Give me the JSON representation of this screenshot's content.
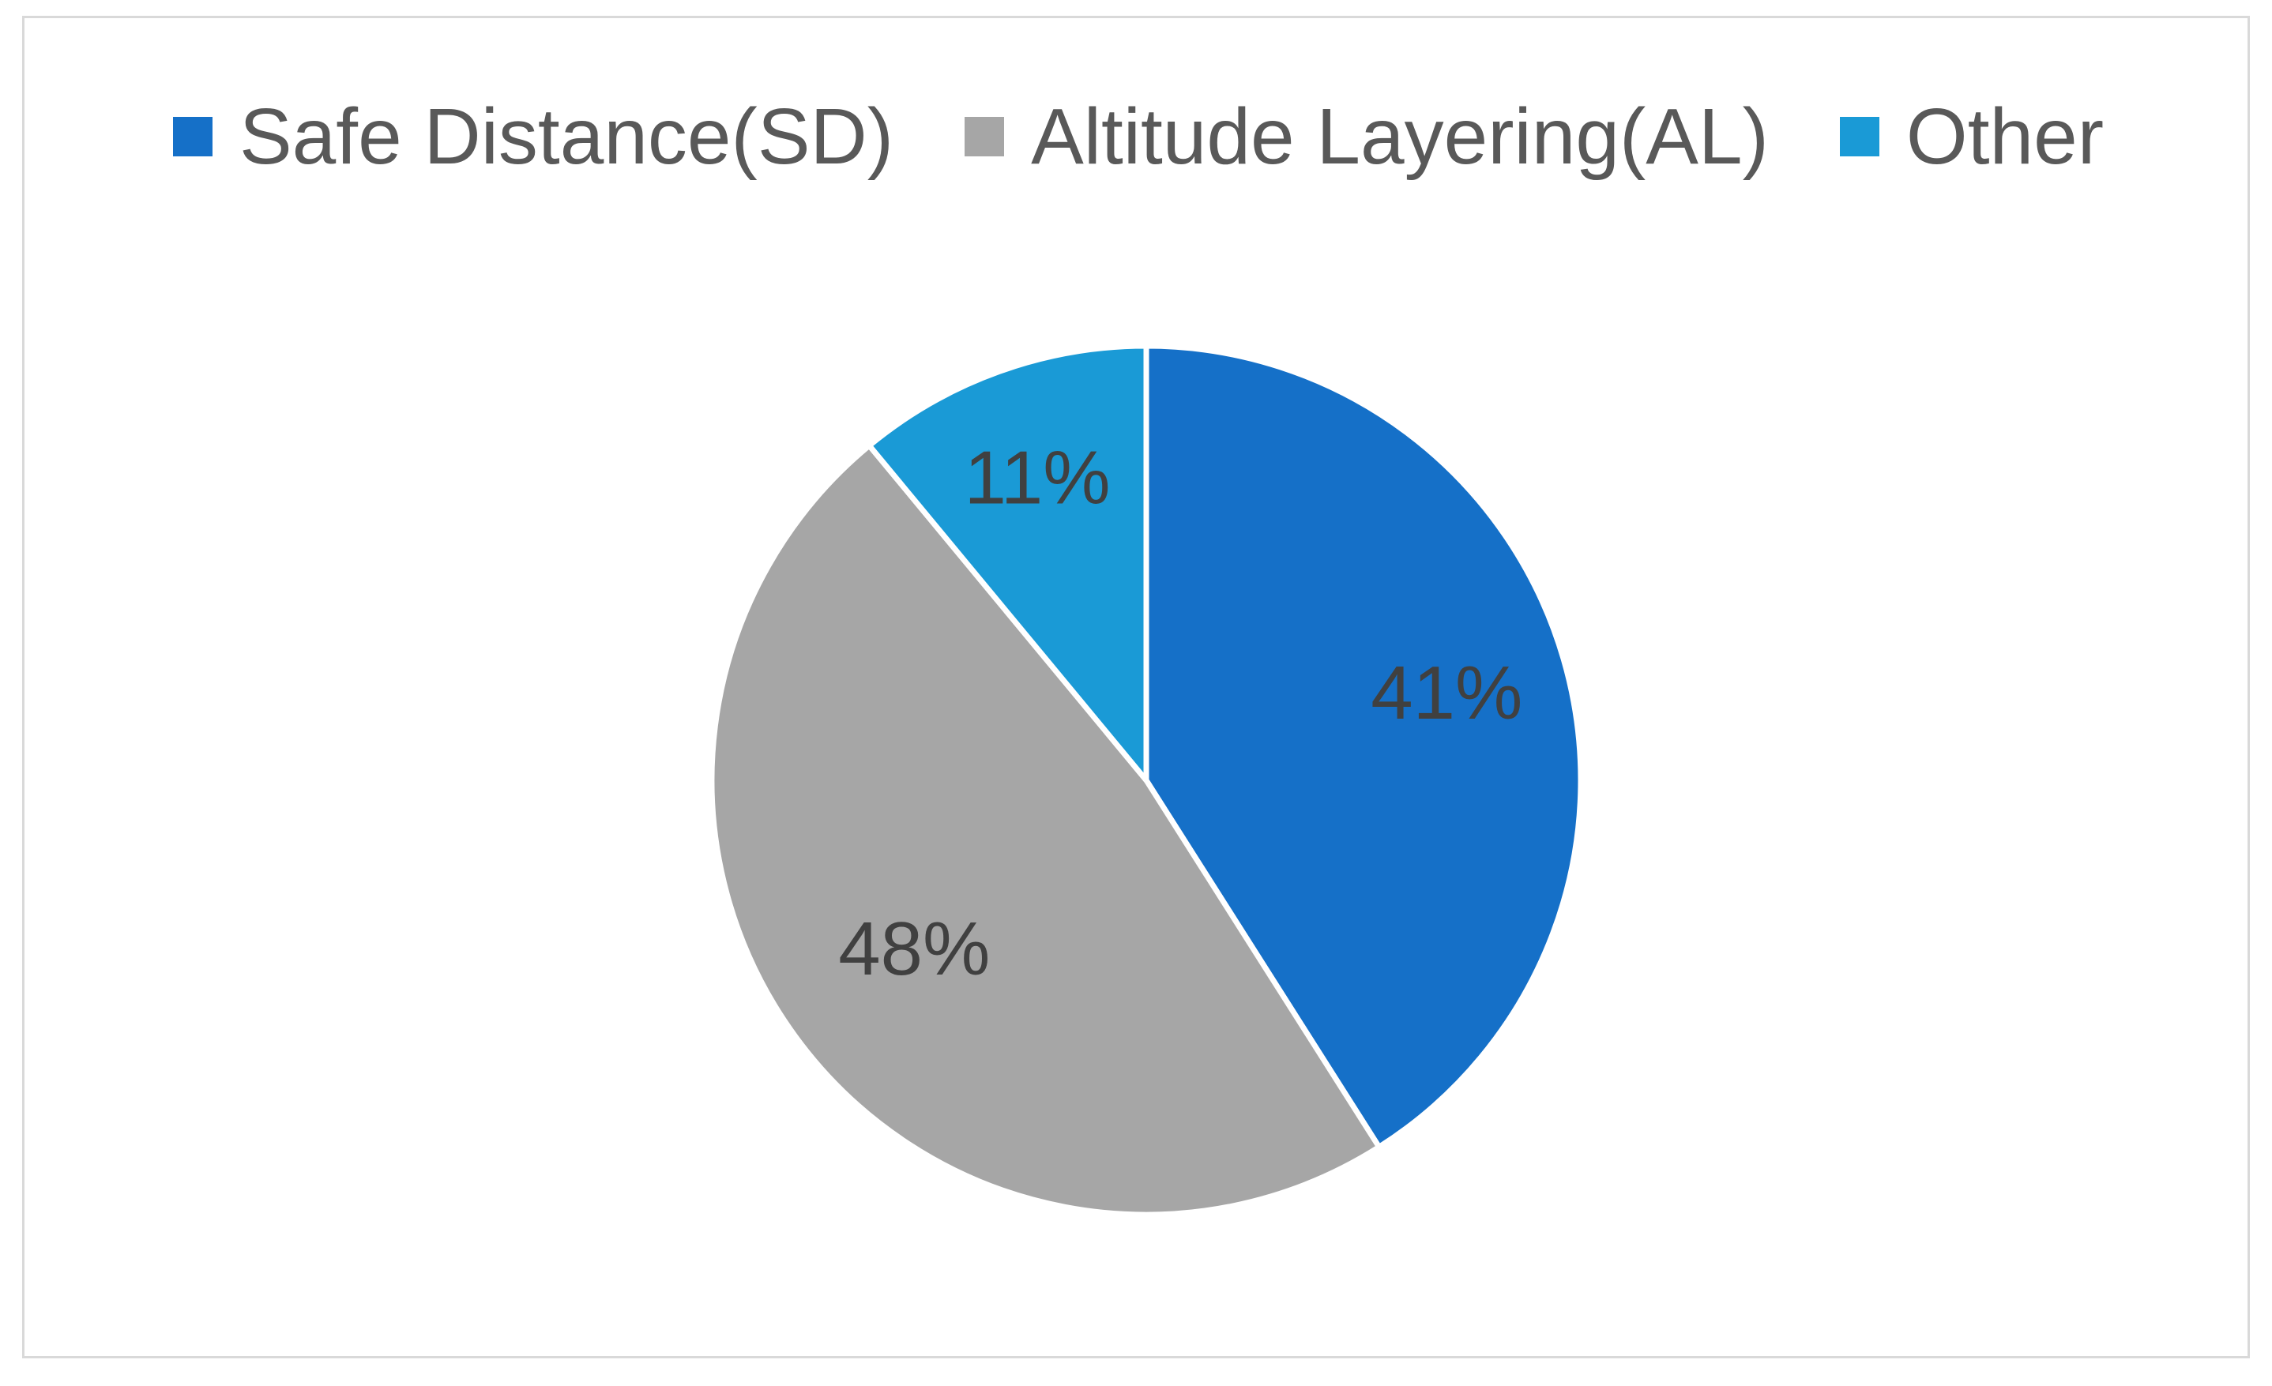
{
  "chart_data": {
    "type": "pie",
    "title": "",
    "legend_position": "top",
    "categories": [
      "Safe Distance(SD)",
      "Altitude Layering(AL)",
      "Other"
    ],
    "values": [
      41,
      48,
      11
    ],
    "data_labels": [
      "41%",
      "48%",
      "11%"
    ],
    "colors": [
      "#1570C8",
      "#A6A6A6",
      "#1A9AD6"
    ],
    "start_angle_deg": 0,
    "direction": "clockwise"
  }
}
